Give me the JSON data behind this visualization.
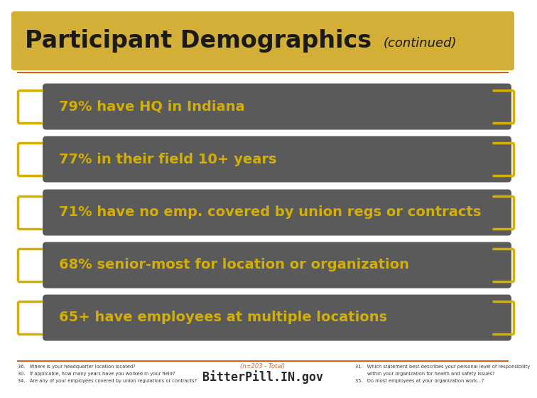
{
  "title_main": "Participant Demographics",
  "title_sub": "(continued)",
  "title_bg_color": "#D4AF37",
  "title_text_color": "#1A1A1A",
  "title_sub_color": "#1A1A1A",
  "background_color": "#FFFFFF",
  "bar_bg_color": "#5A5A5A",
  "bar_text_color": "#D4AF00",
  "bar_items": [
    "79% have HQ in Indiana",
    "77% in their field 10+ years",
    "71% have no emp. covered by union regs or contracts",
    "68% senior-most for location or organization",
    "65+ have employees at multiple locations"
  ],
  "bracket_color": "#D4AF00",
  "orange_line_color": "#D4601A",
  "footer_left": [
    "36.   Where is your headquarter location located?",
    "30.   If applicable, how many years have you worked in your field?",
    "34.   Are any of your employees covered by union regulations or contracts?"
  ],
  "footer_center": "(n=203 - Total)",
  "footer_logo": "BitterPill.IN.gov",
  "footer_right": [
    "31.   Which statement best describes your personal level of responsibility",
    "        within your organization for health and safety issues?",
    "35.   Do most employees at your organization work...?"
  ]
}
